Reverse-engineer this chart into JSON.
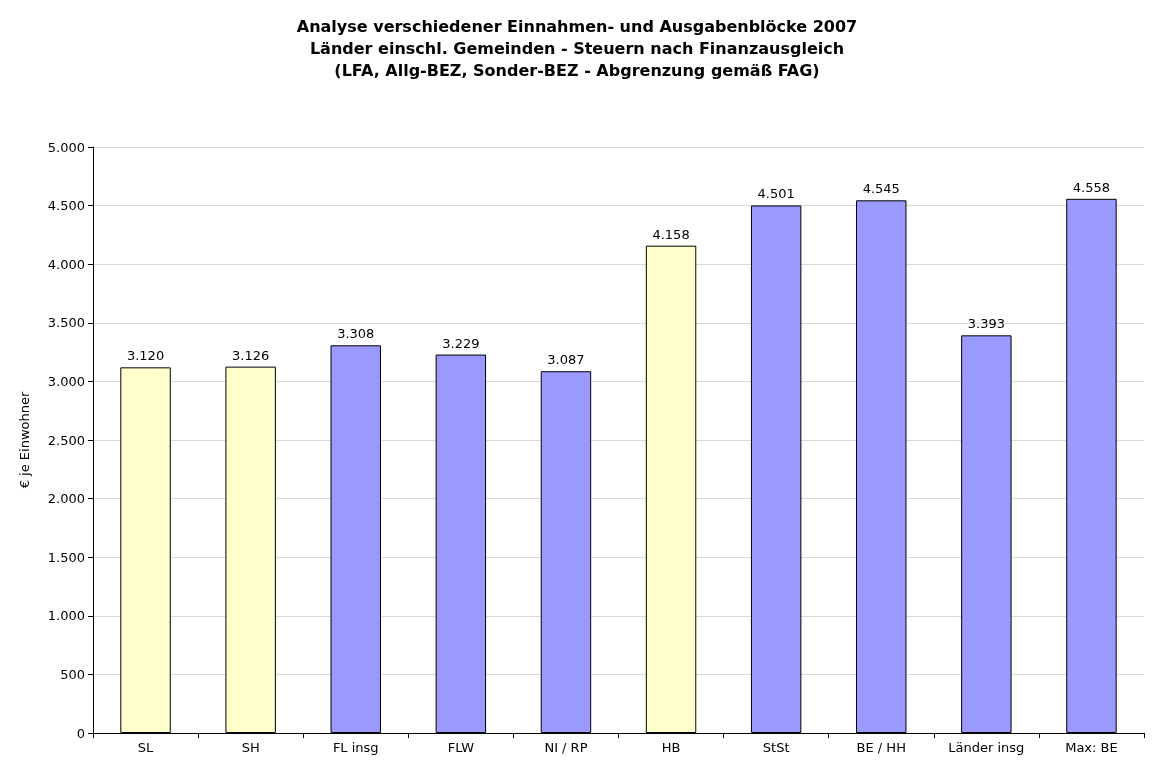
{
  "chart_data": {
    "type": "bar",
    "title": "Analyse verschiedener Einnahmen- und Ausgabenblöcke 2007\nLänder einschl. Gemeinden - Steuern nach Finanzausgleich\n(LFA, Allg-BEZ, Sonder-BEZ - Abgrenzung gemäß FAG)",
    "ylabel": "€ je Einwohner",
    "categories": [
      "SL",
      "SH",
      "FL insg",
      "FLW",
      "NI / RP",
      "HB",
      "StSt",
      "BE / HH",
      "Länder insg",
      "Max: BE"
    ],
    "values": [
      3120,
      3126,
      3308,
      3229,
      3087,
      4158,
      4501,
      4545,
      3393,
      4558
    ],
    "colors": [
      "#ffffcc",
      "#ffffcc",
      "#9999ff",
      "#9999ff",
      "#9999ff",
      "#ffffcc",
      "#9999ff",
      "#9999ff",
      "#9999ff",
      "#9999ff"
    ],
    "value_labels": [
      "3.120",
      "3.126",
      "3.308",
      "3.229",
      "3.087",
      "4.158",
      "4.501",
      "4.545",
      "3.393",
      "4.558"
    ],
    "ylim": [
      0,
      5000
    ],
    "yticks": [
      {
        "value": 0,
        "label": "0"
      },
      {
        "value": 500,
        "label": "500"
      },
      {
        "value": 1000,
        "label": "1.000"
      },
      {
        "value": 1500,
        "label": "1.500"
      },
      {
        "value": 2000,
        "label": "2.000"
      },
      {
        "value": 2500,
        "label": "2.500"
      },
      {
        "value": 3000,
        "label": "3.000"
      },
      {
        "value": 3500,
        "label": "3.500"
      },
      {
        "value": 4000,
        "label": "4.000"
      },
      {
        "value": 4500,
        "label": "4.500"
      },
      {
        "value": 5000,
        "label": "5.000"
      }
    ],
    "grid": "y"
  }
}
